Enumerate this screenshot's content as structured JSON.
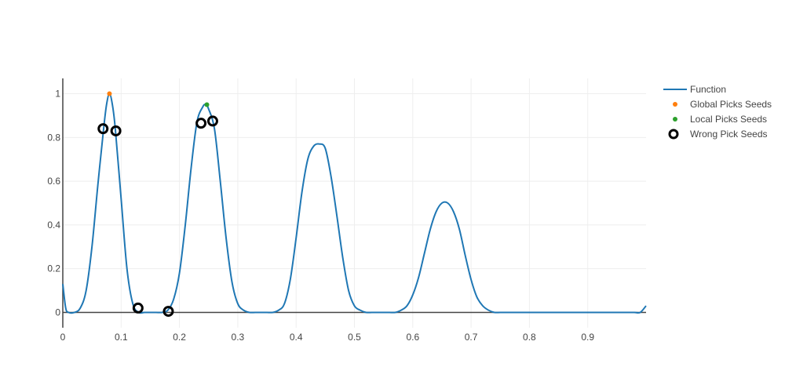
{
  "chart_data": {
    "type": "scatter",
    "title": "",
    "xlabel": "",
    "ylabel": "",
    "xlim": [
      0,
      1
    ],
    "ylim": [
      -0.07,
      1.07
    ],
    "x_ticks": [
      0,
      0.1,
      0.2,
      0.3,
      0.4,
      0.5,
      0.6,
      0.7,
      0.8,
      0.9
    ],
    "x_tick_labels": [
      "0",
      "0.1",
      "0.2",
      "0.3",
      "0.4",
      "0.5",
      "0.6",
      "0.7",
      "0.8",
      "0.9"
    ],
    "y_ticks": [
      0,
      0.2,
      0.4,
      0.6,
      0.8,
      1
    ],
    "y_tick_labels": [
      "0",
      "0.2",
      "0.4",
      "0.6",
      "0.8",
      "1"
    ],
    "grid": true,
    "legend_position": "top-right",
    "series": [
      {
        "name": "Function",
        "mode": "line",
        "color": "#1f77b4",
        "x": [
          0,
          0.005,
          0.01,
          0.02,
          0.03,
          0.04,
          0.05,
          0.06,
          0.07,
          0.075,
          0.08,
          0.085,
          0.09,
          0.1,
          0.11,
          0.12,
          0.13,
          0.14,
          0.15,
          0.16,
          0.17,
          0.18,
          0.19,
          0.2,
          0.21,
          0.22,
          0.23,
          0.24,
          0.245,
          0.25,
          0.26,
          0.27,
          0.28,
          0.29,
          0.3,
          0.31,
          0.32,
          0.33,
          0.34,
          0.35,
          0.36,
          0.37,
          0.38,
          0.39,
          0.4,
          0.41,
          0.42,
          0.43,
          0.44,
          0.45,
          0.46,
          0.47,
          0.48,
          0.49,
          0.5,
          0.51,
          0.52,
          0.53,
          0.54,
          0.55,
          0.56,
          0.57,
          0.58,
          0.59,
          0.6,
          0.61,
          0.62,
          0.63,
          0.64,
          0.65,
          0.66,
          0.67,
          0.68,
          0.69,
          0.7,
          0.71,
          0.72,
          0.73,
          0.74,
          0.75,
          0.76,
          0.77,
          0.78,
          0.79,
          0.8,
          0.81,
          0.82,
          0.83,
          0.84,
          0.85,
          0.86,
          0.87,
          0.88,
          0.89,
          0.9,
          0.91,
          0.92,
          0.93,
          0.94,
          0.95,
          0.96,
          0.97,
          0.98,
          0.99,
          1.0
        ],
        "y": [
          0.13,
          0.02,
          0.0,
          0.0,
          0.02,
          0.1,
          0.3,
          0.58,
          0.84,
          0.95,
          1.0,
          0.95,
          0.84,
          0.52,
          0.2,
          0.04,
          0.0,
          0.0,
          0.0,
          0.0,
          0.0,
          0.01,
          0.06,
          0.18,
          0.4,
          0.66,
          0.87,
          0.94,
          0.95,
          0.93,
          0.84,
          0.6,
          0.34,
          0.14,
          0.04,
          0.01,
          0.0,
          0.0,
          0.0,
          0.0,
          0.0,
          0.01,
          0.04,
          0.15,
          0.34,
          0.55,
          0.7,
          0.76,
          0.77,
          0.75,
          0.62,
          0.44,
          0.25,
          0.1,
          0.03,
          0.01,
          0.0,
          0.0,
          0.0,
          0.0,
          0.0,
          0.0,
          0.01,
          0.03,
          0.08,
          0.16,
          0.27,
          0.38,
          0.46,
          0.5,
          0.5,
          0.46,
          0.38,
          0.26,
          0.15,
          0.07,
          0.03,
          0.01,
          0.0,
          0.0,
          0.0,
          0.0,
          0.0,
          0.0,
          0.0,
          0.0,
          0.0,
          0.0,
          0.0,
          0.0,
          0.0,
          0.0,
          0.0,
          0.0,
          0.0,
          0.0,
          0.0,
          0.0,
          0.0,
          0.0,
          0.0,
          0.0,
          0.0,
          0.0,
          0.03
        ]
      },
      {
        "name": "Global Picks Seeds",
        "mode": "markers",
        "color": "#ff7f0e",
        "x": [
          0.08
        ],
        "y": [
          1.0
        ]
      },
      {
        "name": "Local Picks Seeds",
        "mode": "markers",
        "color": "#2ca02c",
        "x": [
          0.247
        ],
        "y": [
          0.95
        ]
      },
      {
        "name": "Wrong Pick Seeds",
        "mode": "markers-open",
        "color": "#000000",
        "x": [
          0.069,
          0.091,
          0.129,
          0.181,
          0.237,
          0.257
        ],
        "y": [
          0.84,
          0.83,
          0.02,
          0.005,
          0.865,
          0.875
        ]
      }
    ]
  }
}
